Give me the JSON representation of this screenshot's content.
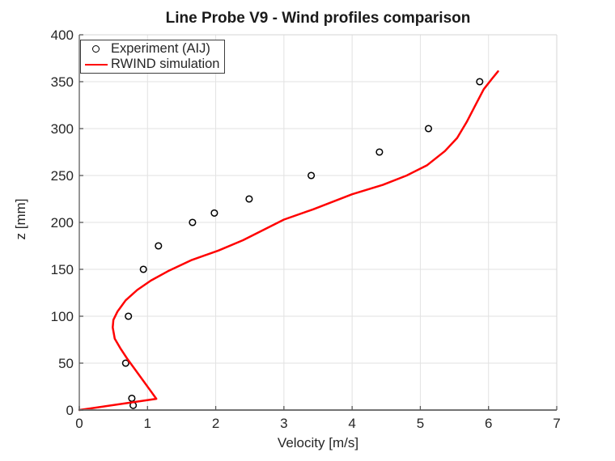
{
  "colors": {
    "background": "#ffffff",
    "grid": "#e2e2e2",
    "box_border": "#d6d6d6",
    "spine": "#737373",
    "tick": "#595959",
    "text": "#262626",
    "experiment_marker": "#000000",
    "simulation_line": "#ff0000",
    "legend_border": "#3d3d3d"
  },
  "chart_data": {
    "type": "scatter",
    "title": "Line Probe V9 - Wind profiles comparison",
    "xlabel": "Velocity [m/s]",
    "ylabel": "z [mm]",
    "xlim": [
      0,
      7
    ],
    "ylim": [
      0,
      400
    ],
    "xticks": [
      0,
      1,
      2,
      3,
      4,
      5,
      6,
      7
    ],
    "yticks": [
      0,
      50,
      100,
      150,
      200,
      250,
      300,
      350,
      400
    ],
    "grid": true,
    "legend_position": "top-left",
    "series": [
      {
        "name": "Experiment (AIJ)",
        "type": "scatter",
        "marker": "open-circle",
        "color": "#000000",
        "points_xy": [
          [
            0.79,
            5
          ],
          [
            0.77,
            12.5
          ],
          [
            0.68,
            50
          ],
          [
            0.72,
            100
          ],
          [
            0.94,
            150
          ],
          [
            1.16,
            175
          ],
          [
            1.66,
            200
          ],
          [
            1.98,
            210
          ],
          [
            2.49,
            225
          ],
          [
            3.4,
            250
          ],
          [
            4.4,
            275
          ],
          [
            5.12,
            300
          ],
          [
            5.87,
            350
          ]
        ]
      },
      {
        "name": "RWIND simulation",
        "type": "line",
        "color": "#ff0000",
        "points_xy": [
          [
            0.0,
            0
          ],
          [
            1.13,
            12
          ],
          [
            1.05,
            20
          ],
          [
            0.87,
            38
          ],
          [
            0.7,
            55
          ],
          [
            0.6,
            66
          ],
          [
            0.52,
            76
          ],
          [
            0.49,
            88
          ],
          [
            0.5,
            96
          ],
          [
            0.56,
            105
          ],
          [
            0.68,
            117
          ],
          [
            0.85,
            128
          ],
          [
            1.05,
            138
          ],
          [
            1.3,
            148
          ],
          [
            1.65,
            160
          ],
          [
            2.04,
            170
          ],
          [
            2.4,
            181
          ],
          [
            2.7,
            192
          ],
          [
            3.0,
            203
          ],
          [
            3.43,
            214
          ],
          [
            4.0,
            230
          ],
          [
            4.45,
            240
          ],
          [
            4.8,
            250
          ],
          [
            5.1,
            261
          ],
          [
            5.36,
            276
          ],
          [
            5.54,
            290
          ],
          [
            5.68,
            307
          ],
          [
            5.8,
            324
          ],
          [
            5.93,
            342
          ],
          [
            6.05,
            353
          ],
          [
            6.14,
            361
          ]
        ]
      }
    ]
  }
}
